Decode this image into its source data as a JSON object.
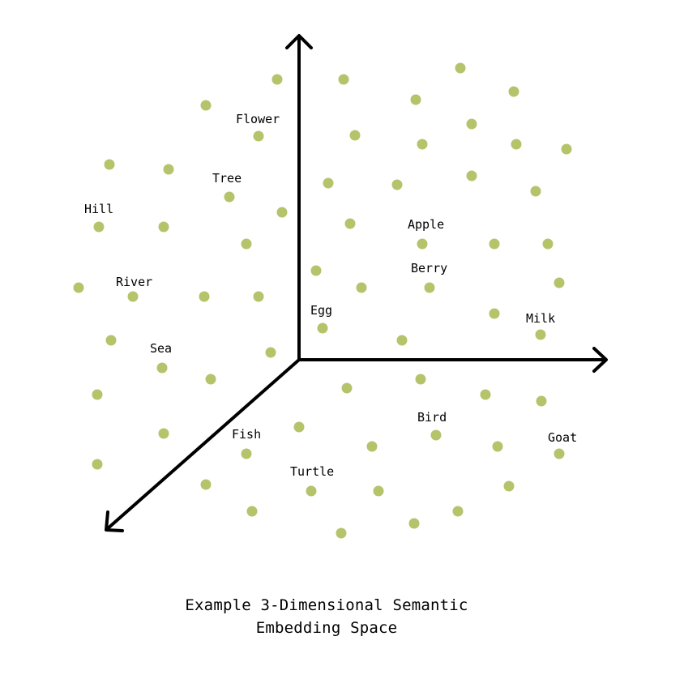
{
  "point_color": "#b5c46a",
  "axis_color": "#000000",
  "labels": {
    "flower": "Flower",
    "tree": "Tree",
    "hill": "Hill",
    "river": "River",
    "sea": "Sea",
    "fish": "Fish",
    "turtle": "Turtle",
    "bird": "Bird",
    "goat": "Goat",
    "apple": "Apple",
    "berry": "Berry",
    "egg": "Egg",
    "milk": "Milk"
  },
  "caption": {
    "line1": "Example 3-Dimensional Semantic",
    "line2": "Embedding Space"
  }
}
